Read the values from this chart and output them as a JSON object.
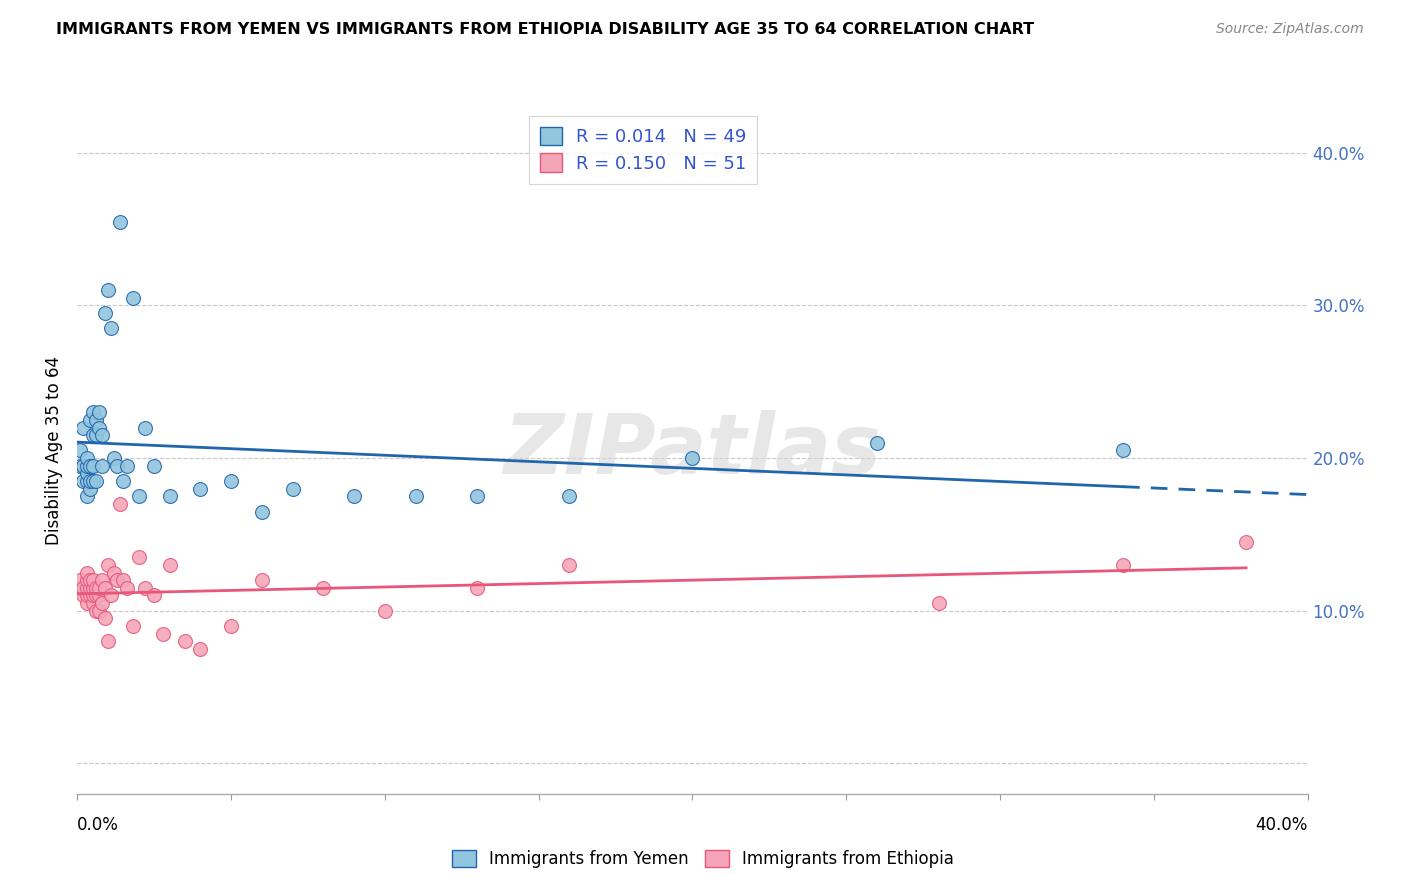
{
  "title": "IMMIGRANTS FROM YEMEN VS IMMIGRANTS FROM ETHIOPIA DISABILITY AGE 35 TO 64 CORRELATION CHART",
  "source": "Source: ZipAtlas.com",
  "ylabel": "Disability Age 35 to 64",
  "xlim": [
    0.0,
    0.4
  ],
  "ylim": [
    -0.02,
    0.43
  ],
  "yticks": [
    0.0,
    0.1,
    0.2,
    0.3,
    0.4
  ],
  "ytick_labels": [
    "",
    "10.0%",
    "20.0%",
    "30.0%",
    "40.0%"
  ],
  "legend_label1": "Immigrants from Yemen",
  "legend_label2": "Immigrants from Ethiopia",
  "color_yemen": "#92c5de",
  "color_ethiopia": "#f4a6b8",
  "color_line_yemen": "#2166ac",
  "color_line_ethiopia": "#e8567a",
  "background_color": "#ffffff",
  "watermark": "ZIPatlas",
  "yemen_x": [
    0.001,
    0.001,
    0.002,
    0.002,
    0.002,
    0.003,
    0.003,
    0.003,
    0.003,
    0.003,
    0.004,
    0.004,
    0.004,
    0.004,
    0.005,
    0.005,
    0.005,
    0.005,
    0.006,
    0.006,
    0.006,
    0.007,
    0.007,
    0.008,
    0.008,
    0.009,
    0.01,
    0.011,
    0.012,
    0.013,
    0.014,
    0.015,
    0.016,
    0.018,
    0.02,
    0.022,
    0.025,
    0.03,
    0.04,
    0.05,
    0.06,
    0.07,
    0.09,
    0.11,
    0.13,
    0.16,
    0.2,
    0.26,
    0.34
  ],
  "yemen_y": [
    0.195,
    0.205,
    0.185,
    0.195,
    0.22,
    0.175,
    0.185,
    0.19,
    0.195,
    0.2,
    0.18,
    0.185,
    0.195,
    0.225,
    0.185,
    0.195,
    0.215,
    0.23,
    0.185,
    0.215,
    0.225,
    0.22,
    0.23,
    0.195,
    0.215,
    0.295,
    0.31,
    0.285,
    0.2,
    0.195,
    0.355,
    0.185,
    0.195,
    0.305,
    0.175,
    0.22,
    0.195,
    0.175,
    0.18,
    0.185,
    0.165,
    0.18,
    0.175,
    0.175,
    0.175,
    0.175,
    0.2,
    0.21,
    0.205
  ],
  "ethiopia_x": [
    0.001,
    0.001,
    0.002,
    0.002,
    0.003,
    0.003,
    0.003,
    0.003,
    0.003,
    0.004,
    0.004,
    0.004,
    0.005,
    0.005,
    0.005,
    0.005,
    0.006,
    0.006,
    0.006,
    0.007,
    0.007,
    0.007,
    0.008,
    0.008,
    0.009,
    0.009,
    0.01,
    0.01,
    0.011,
    0.012,
    0.013,
    0.014,
    0.015,
    0.016,
    0.018,
    0.02,
    0.022,
    0.025,
    0.028,
    0.03,
    0.035,
    0.04,
    0.05,
    0.06,
    0.08,
    0.1,
    0.13,
    0.16,
    0.28,
    0.34,
    0.38
  ],
  "ethiopia_y": [
    0.115,
    0.12,
    0.11,
    0.115,
    0.105,
    0.11,
    0.115,
    0.12,
    0.125,
    0.11,
    0.115,
    0.12,
    0.105,
    0.11,
    0.115,
    0.12,
    0.1,
    0.11,
    0.115,
    0.1,
    0.11,
    0.115,
    0.105,
    0.12,
    0.095,
    0.115,
    0.08,
    0.13,
    0.11,
    0.125,
    0.12,
    0.17,
    0.12,
    0.115,
    0.09,
    0.135,
    0.115,
    0.11,
    0.085,
    0.13,
    0.08,
    0.075,
    0.09,
    0.12,
    0.115,
    0.1,
    0.115,
    0.13,
    0.105,
    0.13,
    0.145
  ]
}
